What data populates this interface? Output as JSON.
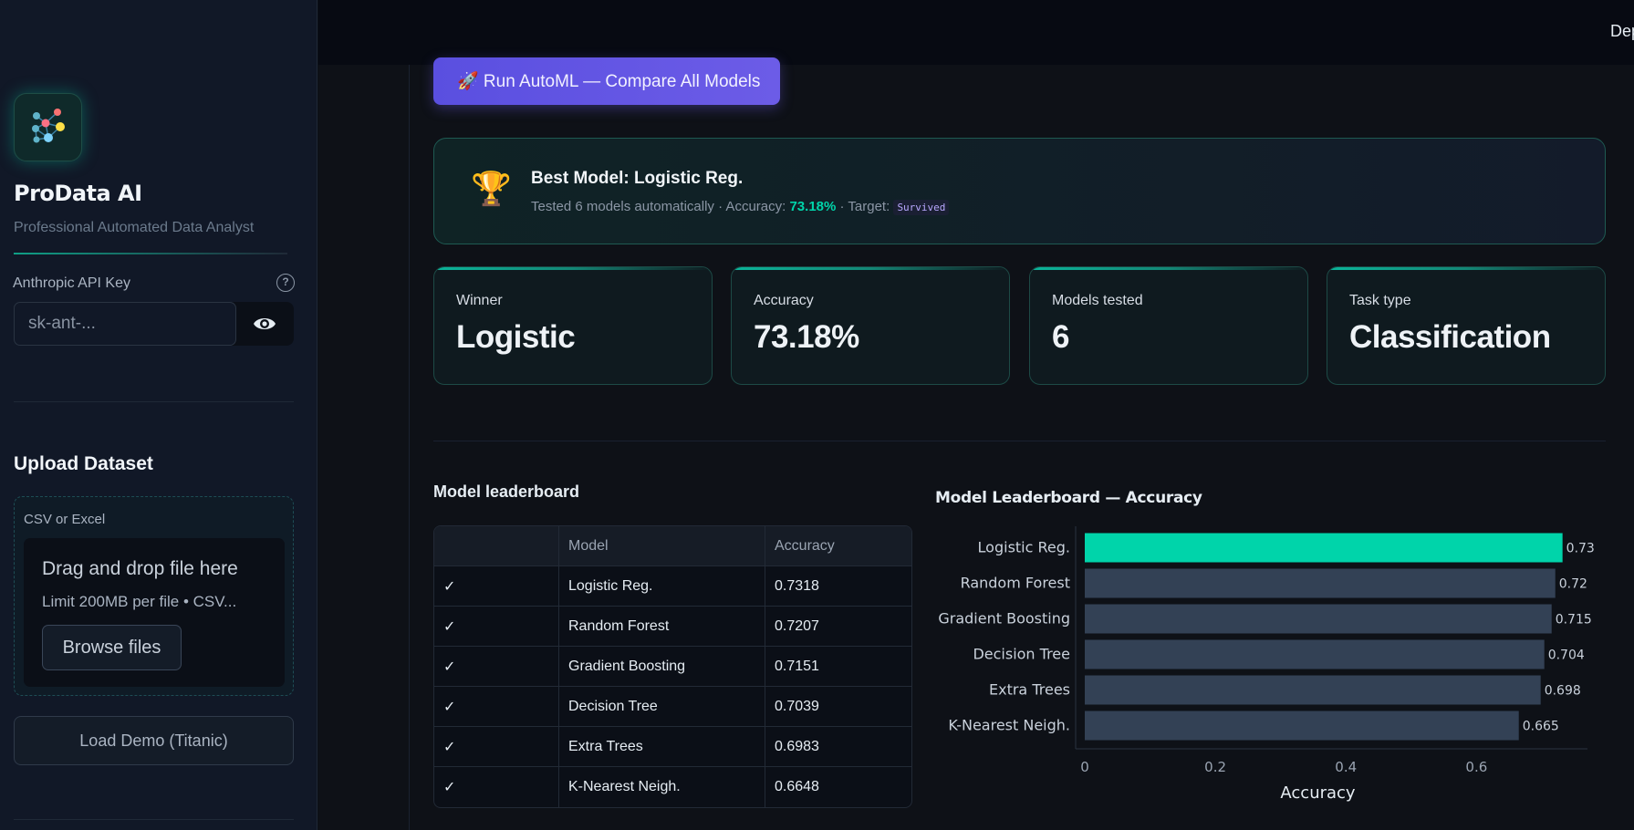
{
  "sidebar": {
    "app_title": "ProData AI",
    "app_subtitle": "Professional Automated Data Analyst",
    "api_key_label": "Anthropic API Key",
    "api_key_placeholder": "sk-ant-...",
    "upload_title": "Upload Dataset",
    "upload_label": "CSV or Excel",
    "drop_title": "Drag and drop file here",
    "drop_sub": "Limit 200MB per file • CSV...",
    "browse_label": "Browse files",
    "demo_label": "Load Demo (Titanic)"
  },
  "topbar": {
    "deploy_label": "Deploy"
  },
  "main": {
    "automl_button": "🚀 Run AutoML — Compare All Models",
    "best": {
      "title": "Best Model: Logistic Reg.",
      "sub_prefix": "Tested 6 models automatically · Accuracy:",
      "accuracy": "73.18%",
      "sub_mid": "· Target:",
      "target": "Survived"
    },
    "metrics": [
      {
        "label": "Winner",
        "value": "Logistic"
      },
      {
        "label": "Accuracy",
        "value": "73.18%"
      },
      {
        "label": "Models tested",
        "value": "6"
      },
      {
        "label": "Task type",
        "value": "Classification"
      }
    ],
    "leaderboard": {
      "title": "Model leaderboard",
      "columns": [
        "",
        "Model",
        "Accuracy"
      ],
      "rows": [
        {
          "check": "✓",
          "model": "Logistic Reg.",
          "accuracy": "0.7318"
        },
        {
          "check": "✓",
          "model": "Random Forest",
          "accuracy": "0.7207"
        },
        {
          "check": "✓",
          "model": "Gradient Boosting",
          "accuracy": "0.7151"
        },
        {
          "check": "✓",
          "model": "Decision Tree",
          "accuracy": "0.7039"
        },
        {
          "check": "✓",
          "model": "Extra Trees",
          "accuracy": "0.6983"
        },
        {
          "check": "✓",
          "model": "K-Nearest Neigh.",
          "accuracy": "0.6648"
        }
      ]
    }
  },
  "chart_data": {
    "type": "bar",
    "orientation": "horizontal",
    "title": "Model Leaderboard — Accuracy",
    "xlabel": "Accuracy",
    "ylabel": "",
    "categories": [
      "Logistic Reg.",
      "Random Forest",
      "Gradient Boosting",
      "Decision Tree",
      "Extra Trees",
      "K-Nearest Neigh."
    ],
    "values": [
      0.7318,
      0.7207,
      0.7151,
      0.7039,
      0.6983,
      0.6648
    ],
    "data_labels": [
      "0.73",
      "0.72",
      "0.715",
      "0.704",
      "0.698",
      "0.665"
    ],
    "xticks": [
      "0",
      "0.2",
      "0.4",
      "0.6"
    ],
    "xlim": [
      0,
      0.77
    ],
    "grid": false,
    "colors": {
      "highlight": "#00d4aa",
      "default": "#334155",
      "text": "#c9d1db"
    }
  }
}
